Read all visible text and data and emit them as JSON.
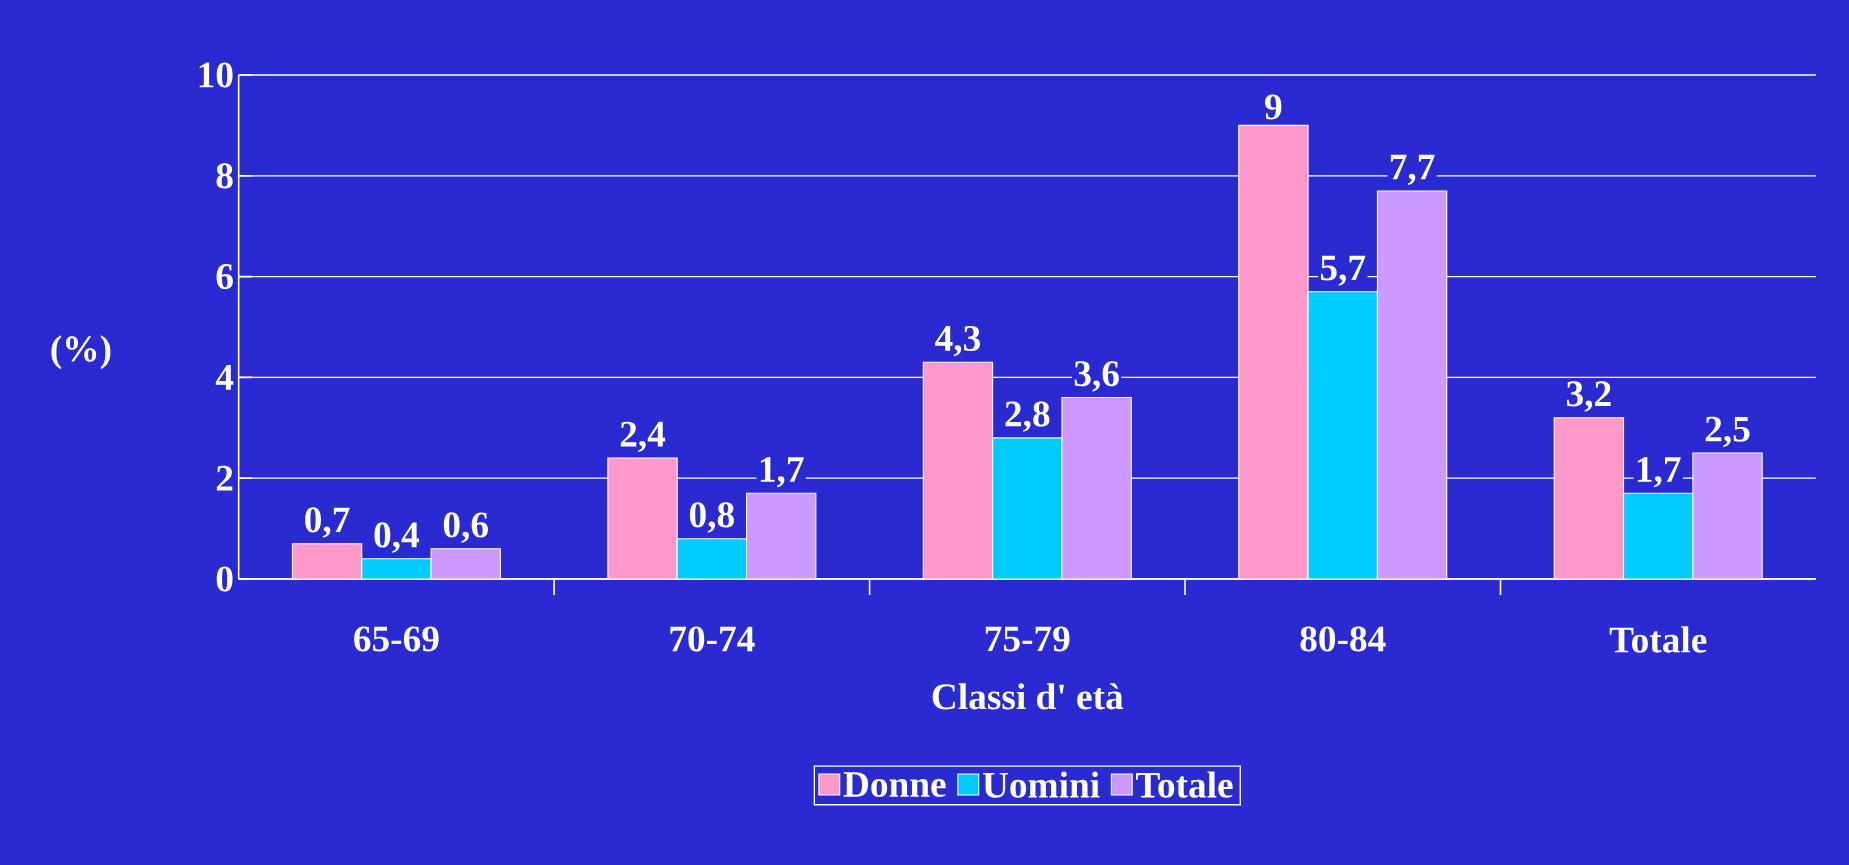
{
  "chart_data": {
    "type": "bar",
    "xlabel": "Classi d' età",
    "ylabel": "(%)",
    "categories": [
      "65-69",
      "70-74",
      "75-79",
      "80-84",
      "Totale"
    ],
    "series": [
      {
        "name": "Donne",
        "color": "#ff99cc",
        "values": [
          0.7,
          2.4,
          4.3,
          9,
          3.2
        ],
        "value_labels": [
          "0,7",
          "2,4",
          "4,3",
          "9",
          "3,2"
        ]
      },
      {
        "name": "Uomini",
        "color": "#00ccff",
        "values": [
          0.4,
          0.8,
          2.8,
          5.7,
          1.7
        ],
        "value_labels": [
          "0,4",
          "0,8",
          "2,8",
          "5,7",
          "1,7"
        ]
      },
      {
        "name": "Totale",
        "color": "#cc99ff",
        "values": [
          0.6,
          1.7,
          3.6,
          7.7,
          2.5
        ],
        "value_labels": [
          "0,6",
          "1,7",
          "3,6",
          "7,7",
          "2,5"
        ]
      }
    ],
    "ylim": [
      0,
      10
    ],
    "yticks": [
      0,
      2,
      4,
      6,
      8,
      10
    ],
    "grid": "y",
    "legend": "bottom"
  }
}
